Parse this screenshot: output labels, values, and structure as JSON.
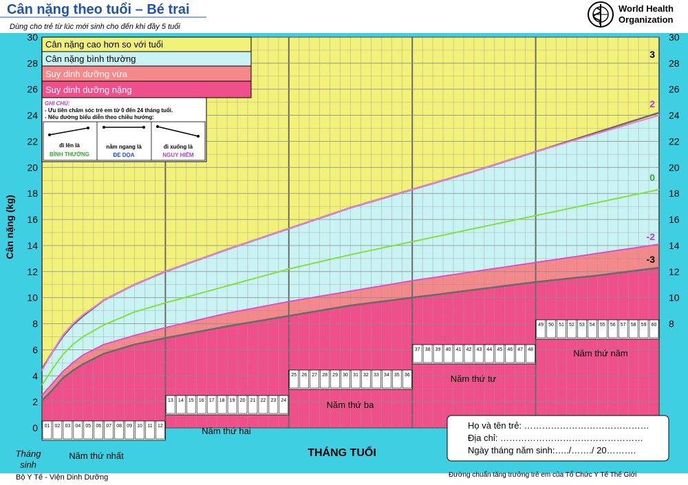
{
  "header": {
    "title": "Cân nặng theo tuổi – Bé trai",
    "subtitle": "Dùng cho trẻ từ lúc mới sinh cho đến khi đầy 5 tuổi",
    "org_line1": "World Health",
    "org_line2": "Organization"
  },
  "legend": {
    "items": [
      {
        "label": "Cân nặng cao hơn so với tuổi",
        "color": "#f2f27a"
      },
      {
        "label": "Cân nặng bình thường",
        "color": "#c9f3f3"
      },
      {
        "label": "Suy dinh dưỡng vừa",
        "color": "#f4898c"
      },
      {
        "label": "Suy dinh dưỡng nặng",
        "color": "#f0508a"
      }
    ]
  },
  "note": {
    "title": "GHI CHÚ:",
    "line1": "- Ưu tiên chăm sóc trẻ em từ 0 đến 24 tháng tuổi.",
    "line2": "- Nếu đường biểu diễn theo chiều hướng:",
    "cases": [
      {
        "line1": "đi lên là",
        "line2": "BÌNH THƯỜNG",
        "color": "#2ea82e",
        "trend": "up"
      },
      {
        "line1": "nằm ngang là",
        "line2": "ĐE DỌA",
        "color": "#1a4fd6",
        "trend": "flat"
      },
      {
        "line1": "đi xuống là",
        "line2": "NGUY HIỂM",
        "color": "#b43cd8",
        "trend": "down"
      }
    ]
  },
  "axes": {
    "ylabel": "Cân nặng (kg)",
    "xlabel": "THÁNG TUỔI",
    "corner_label_1": "Tháng",
    "corner_label_2": "sinh"
  },
  "years": [
    "Năm thứ nhất",
    "Năm thứ hai",
    "Năm thứ ba",
    "Năm thứ tư",
    "Năm thứ năm"
  ],
  "form": {
    "name": "Họ và tên trẻ: ……………………………………",
    "address": "Địa chỉ: …………………………………………",
    "dob": "Ngày tháng năm sinh:…../……./ 20………."
  },
  "footer": {
    "left": "Bộ Y Tế - Viện Dinh Dưỡng",
    "right": "Đường chuẩn tăng trưởng trẻ em của Tổ Chức Y Tế Thế Giới"
  },
  "chart_data": {
    "type": "line",
    "title": "Cân nặng theo tuổi – Bé trai",
    "xlabel": "THÁNG TUỔI",
    "ylabel": "Cân nặng (kg)",
    "xlim": [
      0,
      60
    ],
    "ylim": [
      0,
      30
    ],
    "yticks": [
      0,
      2,
      4,
      6,
      8,
      10,
      12,
      14,
      16,
      18,
      20,
      22,
      24,
      26,
      28,
      30
    ],
    "grid": true,
    "x": [
      0,
      1,
      2,
      3,
      4,
      6,
      9,
      12,
      18,
      24,
      30,
      36,
      42,
      48,
      54,
      60
    ],
    "series": [
      {
        "name": "3",
        "color": "#6b6b6b",
        "values": [
          4.5,
          5.8,
          7.0,
          7.9,
          8.6,
          9.8,
          11.0,
          12.0,
          13.7,
          15.3,
          16.9,
          18.3,
          19.7,
          21.2,
          22.7,
          24.2
        ]
      },
      {
        "name": "2",
        "color": "#f07ae0",
        "values": [
          4.4,
          5.8,
          7.1,
          8.0,
          8.7,
          9.8,
          11.0,
          12.0,
          13.7,
          15.3,
          16.9,
          18.3,
          19.7,
          21.2,
          22.6,
          24.0
        ]
      },
      {
        "name": "0",
        "color": "#7fe23a",
        "values": [
          3.3,
          4.5,
          5.6,
          6.4,
          7.0,
          7.9,
          8.9,
          9.6,
          10.9,
          12.2,
          13.3,
          14.3,
          15.3,
          16.3,
          17.3,
          18.3
        ]
      },
      {
        "name": "-2",
        "color": "#d84fd0",
        "values": [
          2.5,
          3.4,
          4.3,
          5.0,
          5.6,
          6.4,
          7.1,
          7.7,
          8.8,
          9.7,
          10.5,
          11.3,
          12.0,
          12.7,
          13.4,
          14.1
        ]
      },
      {
        "name": "-3",
        "color": "#6b6b6b",
        "values": [
          2.1,
          2.9,
          3.8,
          4.4,
          4.9,
          5.7,
          6.4,
          6.9,
          7.8,
          8.6,
          9.4,
          10.0,
          10.6,
          11.2,
          11.7,
          12.3
        ]
      }
    ]
  }
}
